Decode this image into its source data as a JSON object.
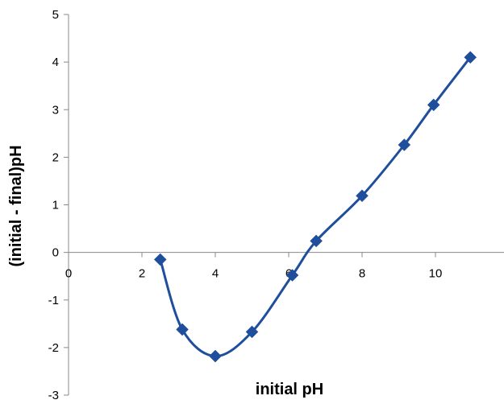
{
  "chart_data": {
    "type": "scatter",
    "title": "",
    "xlabel": "initial pH",
    "ylabel": "(initial - final)pH",
    "xlim": [
      0,
      12
    ],
    "ylim": [
      -3,
      5
    ],
    "xticks": [
      0,
      2,
      4,
      6,
      8,
      10
    ],
    "yticks": [
      -3,
      -2,
      -1,
      0,
      1,
      2,
      3,
      4,
      5
    ],
    "grid": false,
    "legend": "none",
    "smooth_line": true,
    "marker": "diamond",
    "color": "#1f4e9c",
    "series": [
      {
        "x": [
          2.5,
          3.1,
          4.0,
          5.0,
          6.1,
          6.75,
          8.0,
          9.15,
          9.95,
          10.95
        ],
        "y": [
          -0.15,
          -1.62,
          -2.18,
          -1.67,
          -0.48,
          0.24,
          1.19,
          2.26,
          3.1,
          4.1
        ]
      }
    ]
  }
}
